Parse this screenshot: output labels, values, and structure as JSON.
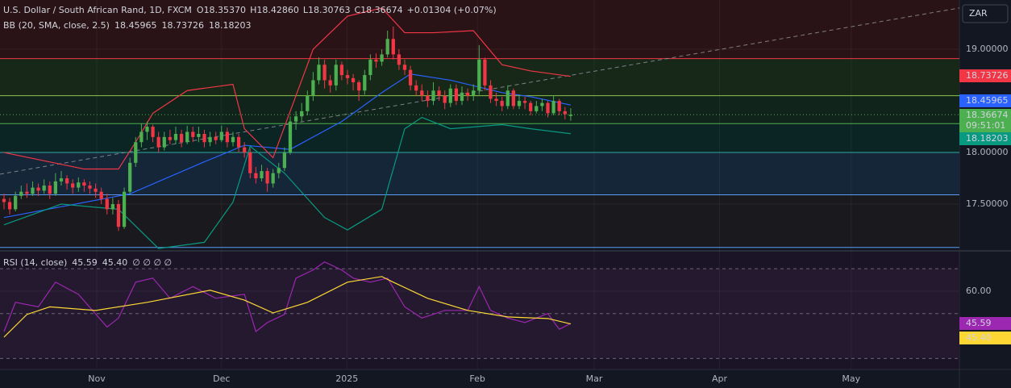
{
  "chart_data": {
    "type": "candlestick",
    "title": "U.S. Dollar / South African Rand, 1D, FXCM",
    "ohlc": [
      {
        "label": "O",
        "value": "18.35370"
      },
      {
        "label": "H",
        "value": "18.42860"
      },
      {
        "label": "L",
        "value": "18.30763"
      },
      {
        "label": "C",
        "value": "18.36674"
      }
    ],
    "change": "+0.01304 (+0.07%)",
    "currency": "ZAR",
    "countdown": "09:51:01",
    "up_color": "#4caf50",
    "down_color": "#f23645",
    "xlim": [
      -0.7,
      166.9
    ],
    "xticks": [
      {
        "value": 16.2,
        "label": "Nov"
      },
      {
        "value": 38,
        "label": "Dec"
      },
      {
        "value": 59.9,
        "label": "2025"
      },
      {
        "value": 82.7,
        "label": "Feb"
      },
      {
        "value": 103.1,
        "label": "Mar"
      },
      {
        "value": 125,
        "label": "Apr"
      },
      {
        "value": 148,
        "label": "May"
      }
    ],
    "ylim": [
      17.055,
      19.477
    ],
    "yticks": [
      {
        "value": 17.5,
        "label": "17.50000"
      },
      {
        "value": 18,
        "label": "18.00000"
      },
      {
        "value": 19,
        "label": "19.00000"
      }
    ],
    "candles": [
      [
        17.55,
        17.6,
        17.45,
        17.52
      ],
      [
        17.52,
        17.56,
        17.4,
        17.45
      ],
      [
        17.45,
        17.62,
        17.43,
        17.58
      ],
      [
        17.58,
        17.68,
        17.55,
        17.62
      ],
      [
        17.62,
        17.7,
        17.56,
        17.6
      ],
      [
        17.6,
        17.72,
        17.58,
        17.66
      ],
      [
        17.66,
        17.7,
        17.58,
        17.63
      ],
      [
        17.63,
        17.74,
        17.6,
        17.68
      ],
      [
        17.68,
        17.72,
        17.55,
        17.6
      ],
      [
        17.6,
        17.8,
        17.58,
        17.72
      ],
      [
        17.72,
        17.82,
        17.68,
        17.75
      ],
      [
        17.75,
        17.78,
        17.64,
        17.7
      ],
      [
        17.7,
        17.74,
        17.6,
        17.66
      ],
      [
        17.66,
        17.76,
        17.62,
        17.71
      ],
      [
        17.71,
        17.74,
        17.62,
        17.68
      ],
      [
        17.68,
        17.72,
        17.6,
        17.65
      ],
      [
        17.65,
        17.7,
        17.56,
        17.62
      ],
      [
        17.62,
        17.66,
        17.5,
        17.55
      ],
      [
        17.55,
        17.6,
        17.4,
        17.45
      ],
      [
        17.45,
        17.56,
        17.4,
        17.5
      ],
      [
        17.5,
        17.54,
        17.24,
        17.28
      ],
      [
        17.28,
        17.66,
        17.26,
        17.62
      ],
      [
        17.62,
        17.95,
        17.6,
        17.9
      ],
      [
        17.9,
        18.15,
        17.86,
        18.1
      ],
      [
        18.1,
        18.28,
        18.05,
        18.2
      ],
      [
        18.2,
        18.3,
        18.12,
        18.25
      ],
      [
        18.25,
        18.27,
        18.1,
        18.15
      ],
      [
        18.15,
        18.2,
        18.0,
        18.05
      ],
      [
        18.05,
        18.2,
        18.02,
        18.15
      ],
      [
        18.15,
        18.22,
        18.08,
        18.12
      ],
      [
        18.12,
        18.25,
        18.08,
        18.18
      ],
      [
        18.18,
        18.22,
        18.05,
        18.1
      ],
      [
        18.1,
        18.26,
        18.08,
        18.2
      ],
      [
        18.2,
        18.25,
        18.1,
        18.15
      ],
      [
        18.15,
        18.25,
        18.1,
        18.18
      ],
      [
        18.18,
        18.22,
        18.05,
        18.1
      ],
      [
        18.1,
        18.2,
        18.06,
        18.15
      ],
      [
        18.15,
        18.2,
        18.08,
        18.12
      ],
      [
        18.12,
        18.26,
        18.1,
        18.2
      ],
      [
        18.2,
        18.24,
        18.05,
        18.1
      ],
      [
        18.1,
        18.2,
        18.06,
        18.15
      ],
      [
        18.15,
        18.18,
        18.0,
        18.05
      ],
      [
        18.05,
        18.1,
        17.95,
        18.0
      ],
      [
        18.0,
        18.04,
        17.75,
        17.8
      ],
      [
        17.8,
        17.86,
        17.7,
        17.75
      ],
      [
        17.75,
        17.88,
        17.72,
        17.82
      ],
      [
        17.82,
        17.85,
        17.62,
        17.7
      ],
      [
        17.7,
        17.84,
        17.66,
        17.8
      ],
      [
        17.8,
        17.9,
        17.75,
        17.85
      ],
      [
        17.85,
        18.05,
        17.82,
        18.0
      ],
      [
        18.0,
        18.35,
        17.98,
        18.3
      ],
      [
        18.3,
        18.4,
        18.22,
        18.35
      ],
      [
        18.35,
        18.48,
        18.3,
        18.4
      ],
      [
        18.4,
        18.6,
        18.36,
        18.55
      ],
      [
        18.55,
        18.78,
        18.5,
        18.7
      ],
      [
        18.7,
        18.92,
        18.66,
        18.85
      ],
      [
        18.85,
        18.9,
        18.62,
        18.7
      ],
      [
        18.7,
        18.75,
        18.58,
        18.65
      ],
      [
        18.65,
        18.9,
        18.6,
        18.85
      ],
      [
        18.85,
        18.88,
        18.7,
        18.75
      ],
      [
        18.75,
        18.8,
        18.66,
        18.72
      ],
      [
        18.72,
        18.76,
        18.6,
        18.68
      ],
      [
        18.68,
        18.7,
        18.5,
        18.6
      ],
      [
        18.6,
        18.8,
        18.56,
        18.75
      ],
      [
        18.75,
        18.95,
        18.7,
        18.9
      ],
      [
        18.9,
        18.96,
        18.82,
        18.88
      ],
      [
        18.88,
        19.0,
        18.84,
        18.95
      ],
      [
        18.95,
        19.18,
        18.92,
        19.1
      ],
      [
        19.1,
        19.22,
        18.9,
        18.95
      ],
      [
        18.95,
        19.0,
        18.8,
        18.85
      ],
      [
        18.85,
        18.9,
        18.75,
        18.8
      ],
      [
        18.8,
        18.84,
        18.6,
        18.65
      ],
      [
        18.65,
        18.7,
        18.55,
        18.6
      ],
      [
        18.6,
        18.66,
        18.5,
        18.55
      ],
      [
        18.55,
        18.6,
        18.44,
        18.5
      ],
      [
        18.5,
        18.68,
        18.46,
        18.6
      ],
      [
        18.6,
        18.64,
        18.5,
        18.55
      ],
      [
        18.55,
        18.6,
        18.42,
        18.48
      ],
      [
        18.48,
        18.66,
        18.44,
        18.62
      ],
      [
        18.62,
        18.66,
        18.46,
        18.5
      ],
      [
        18.5,
        18.64,
        18.46,
        18.58
      ],
      [
        18.58,
        18.62,
        18.5,
        18.55
      ],
      [
        18.55,
        18.66,
        18.5,
        18.6
      ],
      [
        18.6,
        19.04,
        18.56,
        18.9
      ],
      [
        18.9,
        18.92,
        18.6,
        18.65
      ],
      [
        18.65,
        18.7,
        18.48,
        18.52
      ],
      [
        18.52,
        18.58,
        18.45,
        18.5
      ],
      [
        18.5,
        18.54,
        18.4,
        18.45
      ],
      [
        18.45,
        18.65,
        18.42,
        18.6
      ],
      [
        18.6,
        18.62,
        18.42,
        18.45
      ],
      [
        18.45,
        18.56,
        18.42,
        18.5
      ],
      [
        18.5,
        18.54,
        18.42,
        18.48
      ],
      [
        18.48,
        18.5,
        18.36,
        18.4
      ],
      [
        18.4,
        18.5,
        18.38,
        18.45
      ],
      [
        18.45,
        18.52,
        18.4,
        18.48
      ],
      [
        18.48,
        18.5,
        18.34,
        18.38
      ],
      [
        18.38,
        18.55,
        18.36,
        18.5
      ],
      [
        18.5,
        18.52,
        18.36,
        18.4
      ],
      [
        18.4,
        18.44,
        18.32,
        18.37
      ],
      [
        18.3537,
        18.4286,
        18.30763,
        18.36674
      ]
    ],
    "bb": {
      "name": "BB (20, SMA, close, 2.5)",
      "series": [
        {
          "color": "#2962ff",
          "x": [
            0,
            22,
            35,
            42,
            50,
            59,
            66,
            71,
            78,
            87,
            92,
            99
          ],
          "values": [
            17.37,
            17.6,
            17.91,
            18.07,
            18.03,
            18.3,
            18.58,
            18.76,
            18.7,
            18.58,
            18.54,
            18.45965
          ]
        },
        {
          "color": "#f23645",
          "x": [
            0,
            14,
            20,
            23,
            26,
            32,
            40,
            42,
            47,
            54,
            60,
            66,
            70,
            75,
            82,
            87,
            92,
            99
          ],
          "values": [
            18.0,
            17.84,
            17.84,
            18.1,
            18.38,
            18.6,
            18.66,
            18.23,
            17.95,
            19.0,
            19.32,
            19.4,
            19.16,
            19.16,
            19.18,
            18.85,
            18.79,
            18.73726
          ]
        },
        {
          "color": "#089981",
          "x": [
            0,
            10,
            20,
            27,
            35,
            40,
            43,
            49,
            56,
            60,
            66,
            70,
            73,
            78,
            87,
            92,
            99
          ],
          "values": [
            17.3,
            17.5,
            17.45,
            17.07,
            17.13,
            17.52,
            18.06,
            17.8,
            17.37,
            17.25,
            17.45,
            18.23,
            18.34,
            18.23,
            18.27,
            18.23,
            18.18203
          ]
        }
      ]
    },
    "levels": [
      {
        "value": 18.91,
        "color": "#f23645",
        "fill": "#172818"
      },
      {
        "value": 18.55,
        "color": "#8bc34a",
        "fill": "#11241b"
      },
      {
        "value": 18.28,
        "color": "#4caf50",
        "fill": "#0b2424"
      },
      {
        "value": 18.0,
        "color": "#26a69a",
        "fill": "#142638"
      },
      {
        "value": 17.59,
        "color": "#5b9cf6",
        "fill": "#1a1a1e"
      },
      {
        "value": 17.08,
        "color": "#5b9cf6",
        "fill": "#131722"
      }
    ],
    "trendline": {
      "x": [
        -0.7,
        166.9
      ],
      "y": [
        17.79,
        19.4
      ]
    },
    "rsi": {
      "name": "RSI (14, close)",
      "extra": "∅ ∅ ∅ ∅",
      "ylim": [
        25.1,
        78.3
      ],
      "yticks": [
        {
          "value": 60,
          "label": "60.00"
        }
      ],
      "bands": [
        30,
        50,
        70
      ],
      "series": [
        {
          "color": "#9c27b0",
          "x": [
            0,
            2,
            6,
            9,
            13,
            18,
            20,
            23,
            26,
            29,
            33,
            37,
            42,
            44,
            46,
            49,
            51,
            54,
            56,
            59,
            61,
            64,
            67,
            70,
            73,
            77,
            81,
            83,
            85,
            88,
            91,
            95,
            97,
            99
          ],
          "values": [
            42,
            55,
            53,
            64,
            58.6,
            44,
            48,
            64,
            65.8,
            56.8,
            62,
            56.8,
            58.6,
            42,
            46,
            49.6,
            65.8,
            69.4,
            73,
            69.4,
            65.8,
            64,
            65.8,
            53,
            48,
            51.4,
            51.4,
            62,
            51.4,
            48,
            46,
            50,
            43,
            45.59
          ]
        },
        {
          "color": "#fdd835",
          "x": [
            0,
            4,
            8,
            16,
            25,
            36,
            42,
            47,
            53,
            60,
            66,
            68,
            74,
            81,
            88,
            95,
            99
          ],
          "values": [
            39.5,
            49.6,
            53,
            51.4,
            55,
            60.4,
            56,
            50.3,
            55,
            64,
            66.5,
            64,
            56.8,
            51.4,
            48.5,
            47.8,
            45.4
          ],
          "value_label": "45.40"
        }
      ]
    }
  }
}
